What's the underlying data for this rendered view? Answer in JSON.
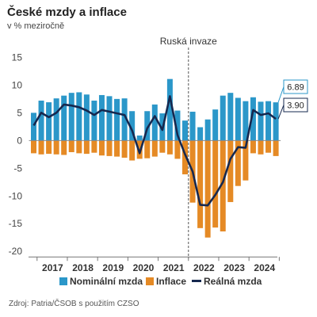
{
  "title": "České mzdy a inflace",
  "subtitle": "v % meziročně",
  "source": "Zdroj: Patria/ČSOB s použitím CZSO",
  "colors": {
    "nominal": "#2b97c9",
    "inflation": "#e58a25",
    "real": "#16284f"
  },
  "chart_data": {
    "type": "bar",
    "x": [
      "2016 Q4",
      "2017 Q1",
      "2017 Q2",
      "2017 Q3",
      "2017 Q4",
      "2018 Q1",
      "2018 Q2",
      "2018 Q3",
      "2018 Q4",
      "2019 Q1",
      "2019 Q2",
      "2019 Q3",
      "2019 Q4",
      "2020 Q1",
      "2020 Q2",
      "2020 Q3",
      "2020 Q4",
      "2021 Q1",
      "2021 Q2",
      "2021 Q3",
      "2021 Q4",
      "2022 Q1",
      "2022 Q2",
      "2022 Q3",
      "2022 Q4",
      "2023 Q1",
      "2023 Q2",
      "2023 Q3",
      "2023 Q4",
      "2024 Q1",
      "2024 Q2",
      "2024 Q3",
      "2024 Q4"
    ],
    "xticks": [
      "2017",
      "2018",
      "2019",
      "2020",
      "2021",
      "2022",
      "2023",
      "2024"
    ],
    "yticks": [
      "15",
      "10",
      "5",
      "0",
      "-5",
      "-10",
      "-15",
      "-20"
    ],
    "ylim": [
      -21,
      15.5
    ],
    "series": [
      {
        "name": "Nominální mzda",
        "type": "bar",
        "values": [
          5.0,
          7.2,
          6.9,
          7.6,
          8.1,
          8.6,
          8.7,
          8.3,
          7.2,
          8.2,
          8.0,
          7.5,
          7.6,
          5.3,
          0.9,
          5.3,
          6.5,
          4.9,
          11.1,
          5.4,
          3.6,
          5.2,
          2.4,
          3.8,
          5.6,
          8.1,
          8.6,
          7.7,
          7.1,
          7.8,
          7.0,
          7.1,
          6.89
        ]
      },
      {
        "name": "Inflace",
        "type": "bar",
        "values": [
          -2.3,
          -2.5,
          -2.4,
          -2.5,
          -2.6,
          -2.1,
          -2.3,
          -2.4,
          -2.2,
          -2.7,
          -2.8,
          -2.9,
          -3.1,
          -3.6,
          -3.3,
          -3.2,
          -2.9,
          -2.2,
          -2.5,
          -3.3,
          -6.1,
          -11.2,
          -15.8,
          -17.5,
          -15.7,
          -16.4,
          -11.1,
          -8.2,
          -7.2,
          -2.3,
          -2.5,
          -2.2,
          -2.8
        ]
      },
      {
        "name": "Reálná mzda",
        "type": "line",
        "values": [
          2.7,
          5.0,
          4.2,
          5.0,
          6.5,
          6.3,
          6.0,
          5.4,
          4.6,
          5.5,
          5.2,
          4.9,
          4.6,
          1.8,
          -2.3,
          2.2,
          4.4,
          1.9,
          8.0,
          1.0,
          -2.5,
          -5.6,
          -11.6,
          -11.7,
          -9.8,
          -7.5,
          -3.3,
          -1.2,
          -1.3,
          5.5,
          4.6,
          4.9,
          3.9
        ]
      }
    ],
    "end_labels": {
      "nominal": "6.89",
      "real": "3.90"
    },
    "annotation": "Ruská invaze",
    "legend_position": "bottom",
    "grid": false
  }
}
